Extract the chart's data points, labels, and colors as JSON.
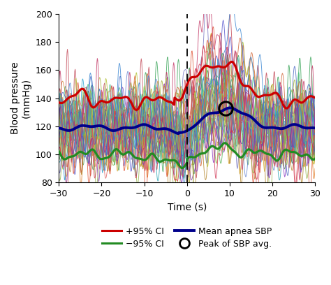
{
  "xlim": [
    -30,
    30
  ],
  "ylim": [
    80,
    200
  ],
  "xlabel": "Time (s)",
  "ylabel": "Blood pressure\n(mmHg)",
  "yticks": [
    80,
    100,
    120,
    140,
    160,
    180,
    200
  ],
  "xticks": [
    -30,
    -20,
    -10,
    0,
    10,
    20,
    30
  ],
  "vline_x": 0,
  "red_color": "#cc0000",
  "green_color": "#228B22",
  "blue_color": "#00008B",
  "peak_marker_x": 9.0,
  "peak_marker_y": 133,
  "seed": 42,
  "n_individual": 35,
  "individual_colors": [
    "#e07820",
    "#d4a020",
    "#4a9a4a",
    "#5050cc",
    "#cc4444",
    "#20a0b0",
    "#9030a0",
    "#7070c0",
    "#c07030",
    "#30a050",
    "#6080d0",
    "#d06030",
    "#50b050",
    "#8040b0",
    "#b08020",
    "#40c080",
    "#c04050",
    "#5090d0",
    "#a0b030",
    "#d04080",
    "#30b0a0",
    "#e05030",
    "#4060c0",
    "#90b040",
    "#c03060",
    "#20a0d0",
    "#d08030",
    "#6040b0",
    "#b0c030",
    "#e06060",
    "#50c0a0",
    "#8030c0",
    "#a0d050",
    "#d03050",
    "#3080d0"
  ],
  "legend_fontsize": 9,
  "axis_fontsize": 10,
  "figsize": [
    4.74,
    4.08
  ],
  "dpi": 100
}
